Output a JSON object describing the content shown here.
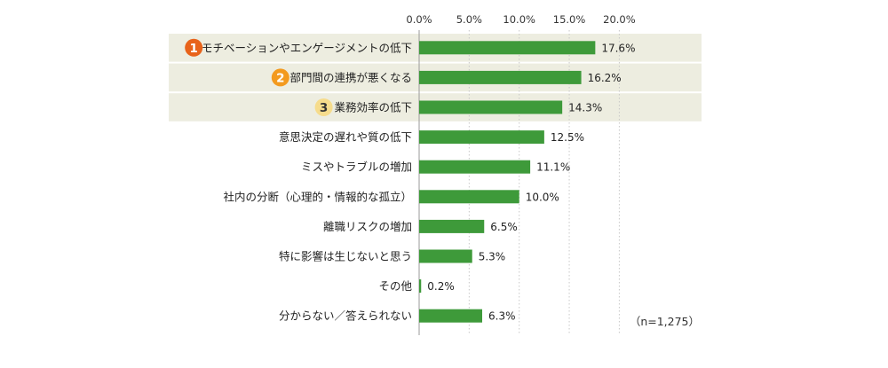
{
  "chart_data": {
    "type": "bar",
    "orientation": "horizontal",
    "categories": [
      "モチベーションやエンゲージメントの低下",
      "部門間の連携が悪くなる",
      "業務効率の低下",
      "意思決定の遅れや質の低下",
      "ミスやトラブルの増加",
      "社内の分断（心理的・情報的な孤立）",
      "離職リスクの増加",
      "特に影響は生じないと思う",
      "その他",
      "分からない／答えられない"
    ],
    "values": [
      17.6,
      16.2,
      14.3,
      12.5,
      11.1,
      10.0,
      6.5,
      5.3,
      0.2,
      6.3
    ],
    "value_labels": [
      "17.6%",
      "16.2%",
      "14.3%",
      "12.5%",
      "11.1%",
      "10.0%",
      "6.5%",
      "5.3%",
      "0.2%",
      "6.3%"
    ],
    "x_ticks": [
      0,
      5,
      10,
      15,
      20
    ],
    "x_tick_labels": [
      "0.0%",
      "5.0%",
      "10.0%",
      "15.0%",
      "20.0%"
    ],
    "xlim": [
      0,
      20
    ],
    "ranks": [
      {
        "index": 0,
        "label": "1",
        "color": "#E8631A",
        "text_color": "#ffffff"
      },
      {
        "index": 1,
        "label": "2",
        "color": "#F39A1E",
        "text_color": "#ffffff"
      },
      {
        "index": 2,
        "label": "3",
        "color": "#F6DC8C",
        "text_color": "#333333"
      }
    ],
    "bar_color": "#3E9A3A",
    "highlight_color": "#EDEDE0",
    "grid": "vertical-dotted",
    "note": "（n=1,275）"
  }
}
